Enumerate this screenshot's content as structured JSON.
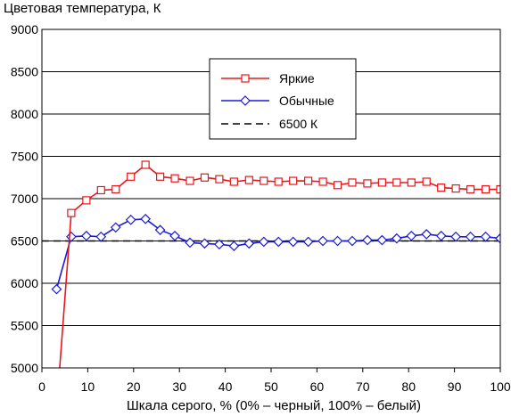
{
  "chart_data": {
    "type": "line",
    "title": "Цветовая температура, К",
    "xlabel": "Шкала серого, % (0% – черный, 100% – белый)",
    "ylabel": "",
    "xlim": [
      0,
      100
    ],
    "ylim": [
      5000,
      9000
    ],
    "xticks": [
      "0",
      "10",
      "20",
      "30",
      "40",
      "50",
      "60",
      "70",
      "80",
      "90",
      "100"
    ],
    "yticks": [
      "5000",
      "5500",
      "6000",
      "6500",
      "7000",
      "7500",
      "8000",
      "8500",
      "9000"
    ],
    "grid": "horizontal",
    "legend_position": "top-right",
    "colors": {
      "bright": "#e8161b",
      "normal": "#1a1adc",
      "reference": "#000000"
    },
    "series": [
      {
        "name": "Яркие",
        "marker": "square",
        "x": [
          3.2,
          6.4,
          9.7,
          12.9,
          16.1,
          19.4,
          22.6,
          25.8,
          29.0,
          32.3,
          35.5,
          38.7,
          41.9,
          45.2,
          48.4,
          51.6,
          54.8,
          58.1,
          61.3,
          64.5,
          67.7,
          71.0,
          74.2,
          77.4,
          80.6,
          83.9,
          87.1,
          90.3,
          93.5,
          96.8,
          100
        ],
        "values": [
          4500,
          6830,
          6980,
          7100,
          7110,
          7260,
          7400,
          7260,
          7240,
          7210,
          7250,
          7230,
          7200,
          7220,
          7210,
          7200,
          7210,
          7210,
          7200,
          7160,
          7190,
          7180,
          7190,
          7190,
          7190,
          7200,
          7130,
          7120,
          7110,
          7110,
          7110
        ]
      },
      {
        "name": "Обычные",
        "marker": "diamond",
        "x": [
          3.2,
          6.4,
          9.7,
          12.9,
          16.1,
          19.4,
          22.6,
          25.8,
          29.0,
          32.3,
          35.5,
          38.7,
          41.9,
          45.2,
          48.4,
          51.6,
          54.8,
          58.1,
          61.3,
          64.5,
          67.7,
          71.0,
          74.2,
          77.4,
          80.6,
          83.9,
          87.1,
          90.3,
          93.5,
          96.8,
          100
        ],
        "values": [
          5930,
          6550,
          6560,
          6550,
          6660,
          6750,
          6760,
          6630,
          6560,
          6480,
          6470,
          6460,
          6440,
          6470,
          6490,
          6490,
          6490,
          6490,
          6500,
          6500,
          6500,
          6510,
          6510,
          6530,
          6560,
          6580,
          6560,
          6550,
          6550,
          6550,
          6530
        ]
      },
      {
        "name": "6500 К",
        "marker": "none",
        "dashed": true,
        "x": [
          0,
          100
        ],
        "values": [
          6500,
          6500
        ]
      }
    ]
  }
}
